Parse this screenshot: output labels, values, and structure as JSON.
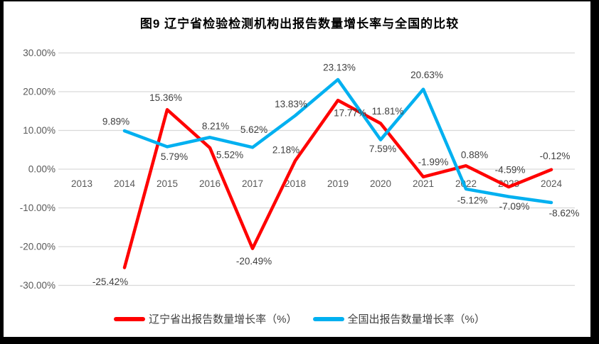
{
  "title": "图9  辽宁省检验检测机构出报告数量增长率与全国的比较",
  "colors": {
    "liaoning_line": "#ff0000",
    "national_line": "#00b0f0",
    "gridline": "#d9d9d9",
    "axis_text": "#595959",
    "label_text": "#404040",
    "frame": "#000000",
    "background": "#ffffff",
    "title_text": "#000000"
  },
  "chart_data": {
    "type": "line",
    "categories": [
      "2013",
      "2014",
      "2015",
      "2016",
      "2017",
      "2018",
      "2019",
      "2020",
      "2021",
      "2022",
      "2023",
      "2024"
    ],
    "xlabel": "",
    "ylabel": "",
    "ylim": [
      -30,
      30
    ],
    "ytick_values": [
      30,
      20,
      10,
      0,
      -10,
      -20,
      -30
    ],
    "ytick_labels": [
      "30.00%",
      "20.00%",
      "10.00%",
      "0.00%",
      "-10.00%",
      "-20.00%",
      "-30.00%"
    ],
    "grid": "horizontal",
    "legend_position": "bottom",
    "series": [
      {
        "name": "辽宁省出报告数量增长率（%）",
        "color": "#ff0000",
        "values": [
          null,
          -25.42,
          15.36,
          5.52,
          -20.49,
          2.18,
          17.77,
          11.81,
          -1.99,
          0.88,
          -4.59,
          -0.12
        ],
        "label_offsets": [
          null,
          [
            -20,
            20
          ],
          [
            -2,
            -17
          ],
          [
            28,
            10
          ],
          [
            2,
            18
          ],
          [
            -13,
            -15
          ],
          [
            17,
            18
          ],
          [
            10,
            -17
          ],
          [
            14,
            -21
          ],
          [
            12,
            -15
          ],
          [
            2,
            -24
          ],
          [
            5,
            -19
          ]
        ]
      },
      {
        "name": "全国出报告数量增长率（%）",
        "color": "#00b0f0",
        "values": [
          null,
          9.89,
          5.79,
          8.21,
          5.62,
          13.83,
          23.13,
          7.59,
          20.63,
          -5.12,
          -7.09,
          -8.62
        ],
        "label_offsets": [
          null,
          [
            -12,
            -13
          ],
          [
            10,
            14
          ],
          [
            8,
            -16
          ],
          [
            2,
            -25
          ],
          [
            -6,
            -16
          ],
          [
            2,
            -17
          ],
          [
            3,
            13
          ],
          [
            5,
            -20
          ],
          [
            9,
            16
          ],
          [
            8,
            14
          ],
          [
            18,
            15
          ]
        ]
      }
    ]
  }
}
